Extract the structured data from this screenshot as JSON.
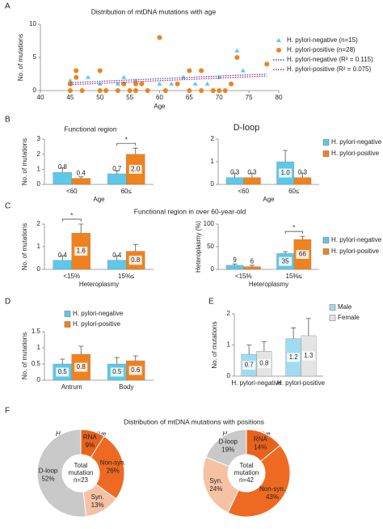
{
  "chart_data": [
    {
      "type": "scatter",
      "panel": "A",
      "title": "Distribution of mtDNA mutations with age",
      "x_label": "Age",
      "y_label": "No. of mutations",
      "xlim": [
        40,
        80
      ],
      "xticks": [
        40,
        45,
        50,
        55,
        60,
        65,
        70,
        75,
        80
      ],
      "ylim": [
        0,
        10
      ],
      "yticks": [
        0,
        5,
        10
      ],
      "legend": "right",
      "series": [
        {
          "name": "H. pylori-negative (n=15)",
          "color": "#5cc8ea",
          "marker": "triangle",
          "x": [
            45,
            48,
            50,
            53,
            54,
            56,
            60,
            62,
            64,
            66,
            68,
            70,
            72,
            73,
            74
          ],
          "values": [
            1.5,
            2,
            1,
            1,
            2,
            1.5,
            1,
            1,
            2,
            1,
            1,
            2,
            1,
            6,
            3
          ]
        },
        {
          "name": "H. pylori-positive (n=28)",
          "color": "#f0821e",
          "marker": "circle",
          "x": [
            45,
            47,
            50,
            51,
            53,
            55,
            56,
            58,
            61,
            65,
            67,
            69,
            70,
            71,
            45,
            46,
            46,
            50,
            54,
            56,
            57,
            60,
            63,
            65,
            67,
            72,
            73,
            78
          ],
          "values": [
            0,
            0,
            0,
            0,
            0,
            0,
            0,
            0,
            0,
            0,
            0,
            0,
            0,
            0,
            1,
            2,
            3,
            3,
            1,
            1,
            1,
            8,
            1,
            3,
            3,
            1,
            5,
            4
          ]
        }
      ],
      "trendlines": [
        {
          "name": "H. pylori-negative (R² = 0.115)",
          "color": "#4848c8",
          "x": [
            45,
            78
          ],
          "values": [
            1.2,
            2.5
          ]
        },
        {
          "name": "H. pylori-positive (R² = 0.075)",
          "color": "#c8206e",
          "x": [
            45,
            78
          ],
          "values": [
            0.9,
            2.2
          ]
        }
      ]
    },
    {
      "type": "bar",
      "panel": "B",
      "title": "Functional region",
      "x_label": "Age",
      "y_label": "No. of mutations",
      "categories": [
        "<60",
        "60≤"
      ],
      "ylim": [
        0,
        3
      ],
      "yticks": [
        0,
        1,
        2,
        3
      ],
      "significance": "*",
      "series": [
        {
          "name": "H. pylori-negative",
          "color": "#5cc8ea",
          "values": [
            0.8,
            0.7
          ],
          "value_labels": [
            "0.8",
            "0.7"
          ],
          "errors": [
            0.3,
            0.2
          ]
        },
        {
          "name": "H. pylori-positive",
          "color": "#f0821e",
          "values": [
            0.4,
            2.0
          ],
          "value_labels": [
            "0.4",
            "2.0"
          ],
          "errors": [
            0.1,
            0.4
          ]
        }
      ]
    },
    {
      "type": "bar",
      "title": "D-loop",
      "x_label": "Age",
      "categories": [
        "<60",
        "60≤"
      ],
      "ylim": [
        0,
        2
      ],
      "yticks": [
        0,
        1,
        2
      ],
      "legend": "right",
      "series": [
        {
          "name": "H. pylori-negative",
          "color": "#5cc8ea",
          "values": [
            0.3,
            1.0
          ],
          "value_labels": [
            "0.3",
            "1.0"
          ],
          "errors": [
            0.2,
            0.5
          ]
        },
        {
          "name": "H. pylori-positive",
          "color": "#f0821e",
          "values": [
            0.3,
            0.3
          ],
          "value_labels": [
            "0.3",
            "0.3"
          ],
          "errors": [
            0.2,
            0.2
          ]
        }
      ]
    },
    {
      "type": "bar",
      "panel": "C",
      "title": "Functional region in over 60-year-old",
      "x_label": "Heteroplasmy",
      "y_label": "No. of mutations",
      "categories": [
        "<15%",
        "15%≤"
      ],
      "ylim": [
        0,
        2
      ],
      "yticks": [
        0,
        1,
        2
      ],
      "significance": "*",
      "series": [
        {
          "name": "H. pylori-negative",
          "color": "#5cc8ea",
          "values": [
            0.4,
            0.4
          ],
          "value_labels": [
            "0.4",
            "0.4"
          ],
          "errors": [
            0.2,
            0.2
          ]
        },
        {
          "name": "H. pylori-positive",
          "color": "#f0821e",
          "values": [
            1.6,
            0.8
          ],
          "value_labels": [
            "1.6",
            "0.8"
          ],
          "errors": [
            0.4,
            0.3
          ]
        }
      ]
    },
    {
      "type": "bar",
      "x_label": "Heteroplasmy",
      "y_label": "Heteroplasmy (%)",
      "categories": [
        "<15%",
        "15%≤"
      ],
      "ylim": [
        0,
        100
      ],
      "yticks": [
        0,
        50,
        100
      ],
      "legend": "right",
      "significance": "*",
      "series": [
        {
          "name": "H. pylori-negative",
          "color": "#5cc8ea",
          "values": [
            9,
            35
          ],
          "errors": [
            3,
            4
          ]
        },
        {
          "name": "H. pylori-positive",
          "color": "#f0821e",
          "values": [
            6,
            66
          ],
          "errors": [
            3,
            7
          ]
        }
      ]
    },
    {
      "type": "bar",
      "panel": "D",
      "y_label": "No. of mutations",
      "categories": [
        "Antrum",
        "Body"
      ],
      "ylim": [
        0,
        1.5
      ],
      "yticks": [
        0,
        0.5,
        1,
        1.5
      ],
      "legend": "top",
      "series": [
        {
          "name": "H. pylori-negative",
          "color": "#5cc8ea",
          "values": [
            0.5,
            0.5
          ],
          "errors": [
            0.15,
            0.2
          ]
        },
        {
          "name": "H. pylori-positive",
          "color": "#f0821e",
          "values": [
            0.8,
            0.6
          ],
          "errors": [
            0.25,
            0.15
          ]
        }
      ]
    },
    {
      "type": "bar",
      "panel": "E",
      "y_label": "No. of mutations",
      "categories": [
        "H. pylori-negative",
        "H. pylori-positive"
      ],
      "ylim": [
        0,
        2
      ],
      "yticks": [
        0,
        1,
        2
      ],
      "legend": "top",
      "series": [
        {
          "name": "Male",
          "color": "#9fdcf2",
          "values": [
            0.7,
            1.2
          ],
          "errors": [
            0.3,
            0.35
          ]
        },
        {
          "name": "Female",
          "color": "#e4e4e4",
          "values": [
            0.8,
            1.3
          ],
          "errors": [
            0.3,
            0.55
          ]
        }
      ]
    },
    {
      "type": "pie",
      "panel": "F",
      "title": "Distribution of mtDNA mutations with positions",
      "subtitle": "H. pylori-negative",
      "categories": [
        "RNA",
        "Non-syn.",
        "Syn.",
        "D-loop"
      ],
      "values": [
        9,
        26,
        13,
        52
      ],
      "value_labels": [
        "9%",
        "26%",
        "13%",
        "52%"
      ],
      "colors": [
        "#e8621c",
        "#ee6a22",
        "#f6c2a4",
        "#c9c9c9"
      ],
      "center_text": [
        "Total",
        "mutation",
        "n=23"
      ]
    },
    {
      "type": "pie",
      "subtitle": "H. pylori-positive",
      "categories": [
        "RNA",
        "Non-syn.",
        "Syn.",
        "D-loop"
      ],
      "values": [
        14,
        43,
        24,
        19
      ],
      "value_labels": [
        "14%",
        "43%",
        "24%",
        "19%"
      ],
      "colors": [
        "#e8621c",
        "#ee6a22",
        "#f6c2a4",
        "#c9c9c9"
      ],
      "center_text": [
        "Total",
        "mutation",
        "n=42"
      ]
    }
  ]
}
